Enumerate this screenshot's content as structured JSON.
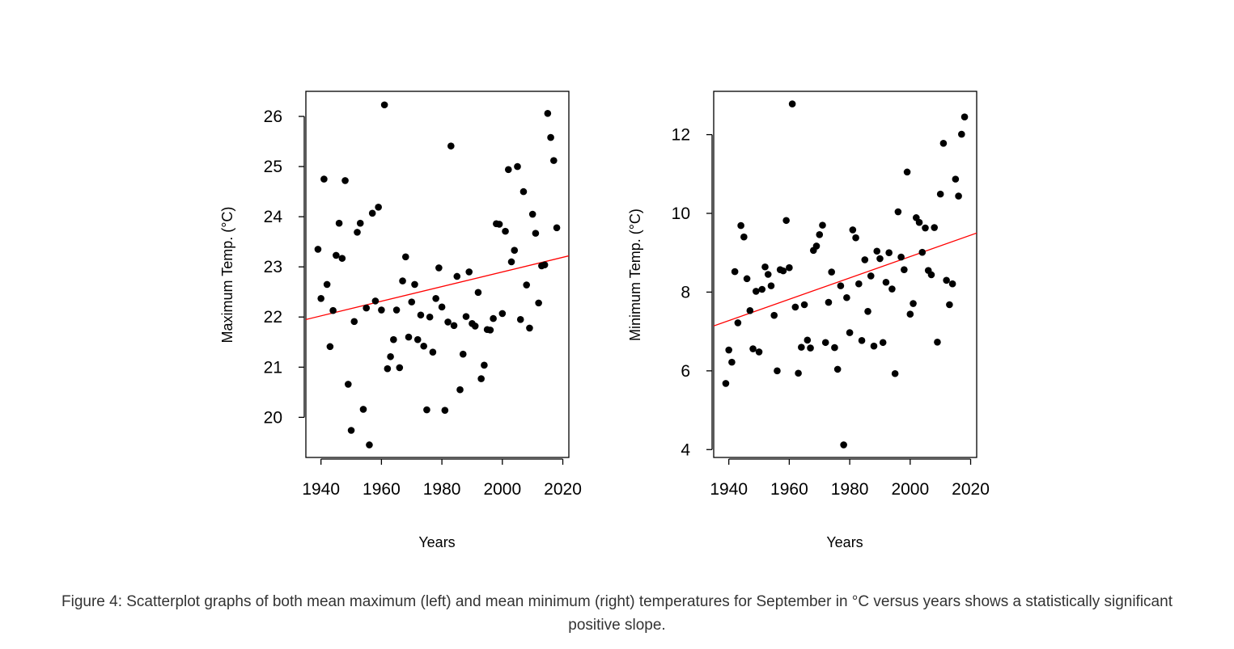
{
  "caption": "Figure 4: Scatterplot graphs of both mean maximum (left) and mean minimum (right) temperatures for September in °C versus years shows a statistically significant positive slope.",
  "colors": {
    "point": "#000000",
    "trend": "#ff0000",
    "axis": "#000000"
  },
  "chart_data": [
    {
      "type": "scatter",
      "xlabel": "Years",
      "ylabel": "Maximum Temp. (°C)",
      "xlim": [
        1935,
        2022
      ],
      "ylim": [
        19.2,
        26.5
      ],
      "xticks": [
        "1940",
        "1960",
        "1980",
        "2000",
        "2020"
      ],
      "yticks": [
        "20",
        "21",
        "22",
        "23",
        "24",
        "25",
        "26"
      ],
      "trend_line": [
        [
          1935,
          21.95
        ],
        [
          2022,
          23.22
        ]
      ],
      "points": [
        [
          1939,
          23.35
        ],
        [
          1940,
          22.37
        ],
        [
          1941,
          24.75
        ],
        [
          1942,
          22.65
        ],
        [
          1943,
          21.41
        ],
        [
          1944,
          22.13
        ],
        [
          1945,
          23.23
        ],
        [
          1946,
          23.87
        ],
        [
          1947,
          23.17
        ],
        [
          1948,
          24.72
        ],
        [
          1949,
          20.66
        ],
        [
          1950,
          19.74
        ],
        [
          1951,
          21.91
        ],
        [
          1952,
          23.69
        ],
        [
          1953,
          23.87
        ],
        [
          1954,
          20.16
        ],
        [
          1955,
          22.18
        ],
        [
          1956,
          19.45
        ],
        [
          1957,
          24.07
        ],
        [
          1958,
          22.32
        ],
        [
          1959,
          24.19
        ],
        [
          1960,
          22.14
        ],
        [
          1961,
          26.23
        ],
        [
          1962,
          20.97
        ],
        [
          1963,
          21.21
        ],
        [
          1964,
          21.55
        ],
        [
          1965,
          22.14
        ],
        [
          1966,
          20.99
        ],
        [
          1967,
          22.72
        ],
        [
          1968,
          23.2
        ],
        [
          1969,
          21.6
        ],
        [
          1970,
          22.3
        ],
        [
          1971,
          22.65
        ],
        [
          1972,
          21.55
        ],
        [
          1973,
          22.04
        ],
        [
          1974,
          21.42
        ],
        [
          1975,
          20.15
        ],
        [
          1976,
          22.0
        ],
        [
          1977,
          21.3
        ],
        [
          1978,
          22.37
        ],
        [
          1979,
          22.98
        ],
        [
          1980,
          22.2
        ],
        [
          1981,
          20.14
        ],
        [
          1982,
          21.9
        ],
        [
          1983,
          25.41
        ],
        [
          1984,
          21.83
        ],
        [
          1985,
          22.81
        ],
        [
          1986,
          20.55
        ],
        [
          1987,
          21.26
        ],
        [
          1988,
          22.01
        ],
        [
          1989,
          22.9
        ],
        [
          1990,
          21.87
        ],
        [
          1991,
          21.82
        ],
        [
          1992,
          22.49
        ],
        [
          1993,
          20.77
        ],
        [
          1994,
          21.04
        ],
        [
          1995,
          21.75
        ],
        [
          1996,
          21.74
        ],
        [
          1997,
          21.97
        ],
        [
          1998,
          23.86
        ],
        [
          1999,
          23.85
        ],
        [
          2000,
          22.07
        ],
        [
          2001,
          23.71
        ],
        [
          2002,
          24.94
        ],
        [
          2003,
          23.1
        ],
        [
          2004,
          23.33
        ],
        [
          2005,
          25.0
        ],
        [
          2006,
          21.95
        ],
        [
          2007,
          24.5
        ],
        [
          2008,
          22.64
        ],
        [
          2009,
          21.78
        ],
        [
          2010,
          24.05
        ],
        [
          2011,
          23.67
        ],
        [
          2012,
          22.28
        ],
        [
          2013,
          23.02
        ],
        [
          2014,
          23.04
        ],
        [
          2015,
          26.06
        ],
        [
          2016,
          25.58
        ],
        [
          2017,
          25.12
        ],
        [
          2018,
          23.78
        ]
      ]
    },
    {
      "type": "scatter",
      "xlabel": "Years",
      "ylabel": "Minimum Temp. (°C)",
      "xlim": [
        1935,
        2022
      ],
      "ylim": [
        3.8,
        13.1
      ],
      "xticks": [
        "1940",
        "1960",
        "1980",
        "2000",
        "2020"
      ],
      "yticks": [
        "4",
        "6",
        "8",
        "10",
        "12"
      ],
      "trend_line": [
        [
          1935,
          7.14
        ],
        [
          2022,
          9.5
        ]
      ],
      "points": [
        [
          1939,
          5.68
        ],
        [
          1940,
          6.53
        ],
        [
          1941,
          6.22
        ],
        [
          1942,
          8.52
        ],
        [
          1943,
          7.22
        ],
        [
          1944,
          9.69
        ],
        [
          1945,
          9.4
        ],
        [
          1946,
          8.34
        ],
        [
          1947,
          7.53
        ],
        [
          1948,
          6.56
        ],
        [
          1949,
          8.02
        ],
        [
          1950,
          6.48
        ],
        [
          1951,
          8.07
        ],
        [
          1952,
          8.64
        ],
        [
          1953,
          8.45
        ],
        [
          1954,
          8.16
        ],
        [
          1955,
          7.41
        ],
        [
          1956,
          6.0
        ],
        [
          1957,
          8.57
        ],
        [
          1958,
          8.54
        ],
        [
          1959,
          9.82
        ],
        [
          1960,
          8.62
        ],
        [
          1961,
          12.78
        ],
        [
          1962,
          7.62
        ],
        [
          1963,
          5.94
        ],
        [
          1964,
          6.6
        ],
        [
          1965,
          7.68
        ],
        [
          1966,
          6.78
        ],
        [
          1967,
          6.58
        ],
        [
          1968,
          9.06
        ],
        [
          1969,
          9.17
        ],
        [
          1970,
          9.46
        ],
        [
          1971,
          9.7
        ],
        [
          1972,
          6.72
        ],
        [
          1973,
          7.74
        ],
        [
          1974,
          8.51
        ],
        [
          1975,
          6.59
        ],
        [
          1976,
          6.04
        ],
        [
          1977,
          8.16
        ],
        [
          1978,
          4.12
        ],
        [
          1979,
          7.86
        ],
        [
          1980,
          6.97
        ],
        [
          1981,
          9.58
        ],
        [
          1982,
          9.38
        ],
        [
          1983,
          8.21
        ],
        [
          1984,
          6.77
        ],
        [
          1985,
          8.82
        ],
        [
          1986,
          7.51
        ],
        [
          1987,
          8.41
        ],
        [
          1988,
          6.63
        ],
        [
          1989,
          9.04
        ],
        [
          1990,
          8.85
        ],
        [
          1991,
          6.72
        ],
        [
          1992,
          8.25
        ],
        [
          1993,
          9.0
        ],
        [
          1994,
          8.08
        ],
        [
          1995,
          5.93
        ],
        [
          1996,
          10.04
        ],
        [
          1997,
          8.89
        ],
        [
          1998,
          8.57
        ],
        [
          1999,
          11.05
        ],
        [
          2000,
          7.44
        ],
        [
          2001,
          7.71
        ],
        [
          2002,
          9.89
        ],
        [
          2003,
          9.77
        ],
        [
          2004,
          9.01
        ],
        [
          2005,
          9.63
        ],
        [
          2006,
          8.55
        ],
        [
          2007,
          8.44
        ],
        [
          2008,
          9.64
        ],
        [
          2009,
          6.73
        ],
        [
          2010,
          10.49
        ],
        [
          2011,
          11.78
        ],
        [
          2012,
          8.3
        ],
        [
          2013,
          7.68
        ],
        [
          2014,
          8.21
        ],
        [
          2015,
          10.87
        ],
        [
          2016,
          10.44
        ],
        [
          2017,
          12.01
        ],
        [
          2018,
          12.45
        ]
      ]
    }
  ]
}
